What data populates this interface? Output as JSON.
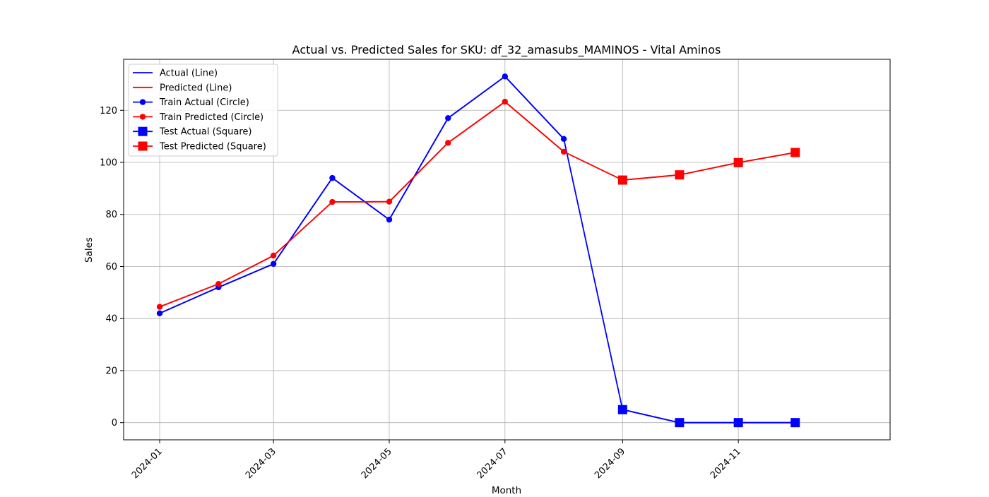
{
  "chart_data": {
    "type": "line",
    "title": "Actual vs. Predicted Sales for SKU: df_32_amasubs_MAMINOS - Vital Aminos",
    "xlabel": "Month",
    "ylabel": "Sales",
    "x": [
      "2024-01",
      "2024-02",
      "2024-03",
      "2024-04",
      "2024-05",
      "2024-06",
      "2024-07",
      "2024-08",
      "2024-09",
      "2024-10",
      "2024-11",
      "2024-12"
    ],
    "xlim": [
      "2023-12-13",
      "2025-01-20"
    ],
    "ylim": [
      -6.6,
      139.6
    ],
    "x_ticks": [
      "2024-01",
      "2024-03",
      "2024-05",
      "2024-07",
      "2024-09",
      "2024-11"
    ],
    "y_ticks": [
      0,
      20,
      40,
      60,
      80,
      100,
      120
    ],
    "grid": true,
    "legend_position": "upper left",
    "colors": {
      "actual": "#0000ff",
      "predicted": "#ff0000"
    },
    "series": [
      {
        "name": "Actual (Line)",
        "kind": "line",
        "color": "#0000ff",
        "values": [
          42,
          52,
          61,
          94,
          78,
          117,
          133,
          109,
          5,
          0,
          0,
          0
        ]
      },
      {
        "name": "Predicted (Line)",
        "kind": "line",
        "color": "#ff0000",
        "values": [
          44.5,
          53.3,
          64.2,
          84.8,
          84.9,
          107.5,
          123.3,
          104.1,
          93.2,
          95.2,
          99.9,
          103.8
        ]
      },
      {
        "name": "Train Actual (Circle)",
        "kind": "circle",
        "color": "#0000ff",
        "x": [
          "2024-01",
          "2024-02",
          "2024-03",
          "2024-04",
          "2024-05",
          "2024-06",
          "2024-07",
          "2024-08"
        ],
        "values": [
          42,
          52,
          61,
          94,
          78,
          117,
          133,
          109
        ]
      },
      {
        "name": "Train Predicted (Circle)",
        "kind": "circle",
        "color": "#ff0000",
        "x": [
          "2024-01",
          "2024-02",
          "2024-03",
          "2024-04",
          "2024-05",
          "2024-06",
          "2024-07",
          "2024-08"
        ],
        "values": [
          44.5,
          53.3,
          64.2,
          84.8,
          84.9,
          107.5,
          123.3,
          104.1
        ]
      },
      {
        "name": "Test Actual (Square)",
        "kind": "square",
        "color": "#0000ff",
        "x": [
          "2024-09",
          "2024-10",
          "2024-11",
          "2024-12"
        ],
        "values": [
          5,
          0,
          0,
          0
        ]
      },
      {
        "name": "Test Predicted (Square)",
        "kind": "square",
        "color": "#ff0000",
        "x": [
          "2024-09",
          "2024-10",
          "2024-11",
          "2024-12"
        ],
        "values": [
          93.2,
          95.2,
          99.9,
          103.8
        ]
      }
    ]
  }
}
